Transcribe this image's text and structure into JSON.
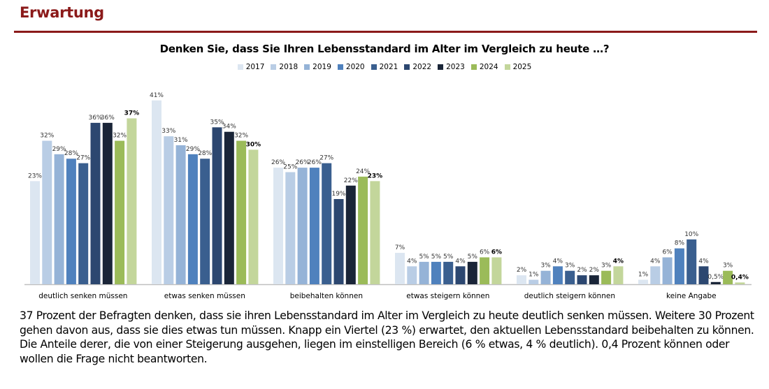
{
  "page": {
    "heading": "Erwartung",
    "summary": "37 Prozent der Befragten denken, dass sie ihren Lebensstandard im Alter im Vergleich zu heute deutlich senken müssen. Weitere 30 Prozent gehen davon aus, dass sie dies etwas tun müssen. Knapp ein Viertel (23 %) erwartet, den aktuellen Lebensstandard beibehalten zu können. Die Anteile derer, die von einer Steigerung ausgehen, liegen im einstelligen Bereich (6 % etwas, 4 % deutlich). 0,4 Prozent können oder wollen die Frage nicht beantworten."
  },
  "colors": {
    "heading": "#8b1a1a",
    "series": [
      "#dce6f1",
      "#b9cde5",
      "#95b3d7",
      "#4f81bd",
      "#3a5f8f",
      "#2c4770",
      "#1a2538",
      "#9bbb59",
      "#c3d69b"
    ]
  },
  "chart_data": {
    "type": "bar",
    "title": "Denken Sie, dass Sie Ihren Lebensstandard im Alter im Vergleich zu heute …?",
    "xlabel": "",
    "ylabel": "",
    "ylim": [
      0,
      45
    ],
    "grid": false,
    "legend_position": "top-center",
    "categories": [
      "deutlich senken müssen",
      "etwas senken müssen",
      "beibehalten können",
      "etwas steigern können",
      "deutlich steigern können",
      "keine Angabe"
    ],
    "series": [
      {
        "name": "2017",
        "values": [
          23,
          41,
          26,
          7,
          2,
          1
        ],
        "labels": [
          "23%",
          "41%",
          "26%",
          "7%",
          "2%",
          "1%"
        ]
      },
      {
        "name": "2018",
        "values": [
          32,
          33,
          25,
          4,
          1,
          4
        ],
        "labels": [
          "32%",
          "33%",
          "25%",
          "4%",
          "1%",
          "4%"
        ]
      },
      {
        "name": "2019",
        "values": [
          29,
          31,
          26,
          5,
          3,
          6
        ],
        "labels": [
          "29%",
          "31%",
          "26%",
          "5%",
          "3%",
          "6%"
        ]
      },
      {
        "name": "2020",
        "values": [
          28,
          29,
          26,
          5,
          4,
          8
        ],
        "labels": [
          "28%",
          "29%",
          "26%",
          "5%",
          "4%",
          "8%"
        ]
      },
      {
        "name": "2021",
        "values": [
          27,
          28,
          27,
          5,
          3,
          10
        ],
        "labels": [
          "27%",
          "28%",
          "27%",
          "5%",
          "3%",
          "10%"
        ]
      },
      {
        "name": "2022",
        "values": [
          36,
          35,
          19,
          4,
          2,
          4
        ],
        "labels": [
          "36%",
          "35%",
          "19%",
          "4%",
          "2%",
          "4%"
        ]
      },
      {
        "name": "2023",
        "values": [
          36,
          34,
          22,
          5,
          2,
          0.5
        ],
        "labels": [
          "36%",
          "34%",
          "22%",
          "5%",
          "2%",
          "0,5%"
        ]
      },
      {
        "name": "2024",
        "values": [
          32,
          32,
          24,
          6,
          3,
          3
        ],
        "labels": [
          "32%",
          "32%",
          "24%",
          "6%",
          "3%",
          "3%"
        ]
      },
      {
        "name": "2025",
        "values": [
          37,
          30,
          23,
          6,
          4,
          0.4
        ],
        "labels": [
          "37%",
          "30%",
          "23%",
          "6%",
          "4%",
          "0,4%"
        ],
        "bold_labels": true
      }
    ]
  }
}
